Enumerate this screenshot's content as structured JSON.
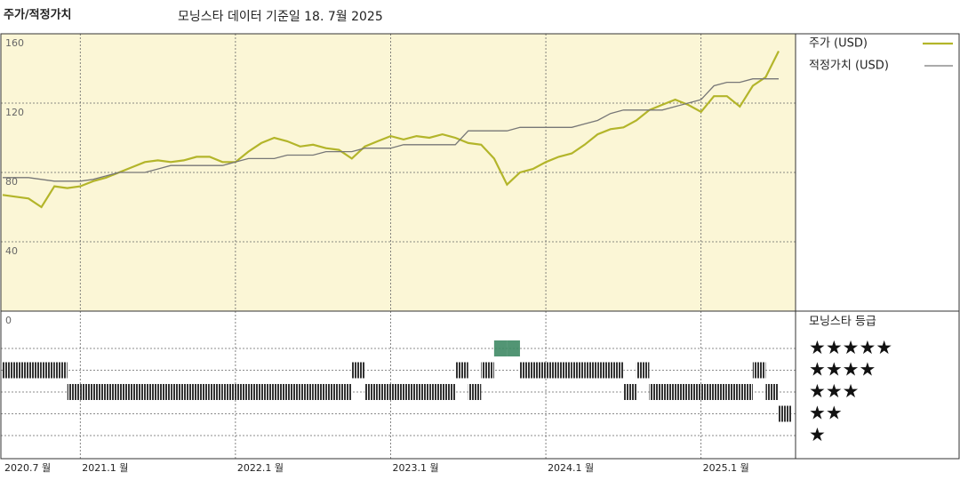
{
  "chart_data": {
    "type": "line",
    "title": "주가/적정가치",
    "subtitle": "모닝스타 데이터 기준일 18. 7월 2025",
    "x": [
      "2020-07",
      "2020-08",
      "2020-09",
      "2020-10",
      "2020-11",
      "2020-12",
      "2021-01",
      "2021-02",
      "2021-03",
      "2021-04",
      "2021-05",
      "2021-06",
      "2021-07",
      "2021-08",
      "2021-09",
      "2021-10",
      "2021-11",
      "2021-12",
      "2022-01",
      "2022-02",
      "2022-03",
      "2022-04",
      "2022-05",
      "2022-06",
      "2022-07",
      "2022-08",
      "2022-09",
      "2022-10",
      "2022-11",
      "2022-12",
      "2023-01",
      "2023-02",
      "2023-03",
      "2023-04",
      "2023-05",
      "2023-06",
      "2023-07",
      "2023-08",
      "2023-09",
      "2023-10",
      "2023-11",
      "2023-12",
      "2024-01",
      "2024-02",
      "2024-03",
      "2024-04",
      "2024-05",
      "2024-06",
      "2024-07",
      "2024-08",
      "2024-09",
      "2024-10",
      "2024-11",
      "2024-12",
      "2025-01",
      "2025-02",
      "2025-03",
      "2025-04",
      "2025-05",
      "2025-06",
      "2025-07"
    ],
    "series": [
      {
        "name": "주가 (USD)",
        "color": "#b3b52a",
        "width": 2.2,
        "values": [
          67,
          66,
          65,
          60,
          72,
          71,
          72,
          75,
          77,
          80,
          83,
          86,
          87,
          86,
          87,
          89,
          89,
          86,
          86,
          92,
          97,
          100,
          98,
          95,
          96,
          94,
          93,
          88,
          95,
          98,
          101,
          99,
          101,
          100,
          102,
          100,
          97,
          96,
          88,
          73,
          80,
          82,
          86,
          89,
          91,
          96,
          102,
          105,
          106,
          110,
          116,
          119,
          122,
          119,
          115,
          124,
          124,
          118,
          130,
          135,
          150
        ]
      },
      {
        "name": "적정가치 (USD)",
        "color": "#777777",
        "width": 1.3,
        "values": [
          77,
          77,
          77,
          76,
          75,
          75,
          75,
          76,
          78,
          80,
          80,
          80,
          82,
          84,
          84,
          84,
          84,
          84,
          86,
          88,
          88,
          88,
          90,
          90,
          90,
          92,
          92,
          92,
          94,
          94,
          94,
          96,
          96,
          96,
          96,
          96,
          104,
          104,
          104,
          104,
          106,
          106,
          106,
          106,
          106,
          108,
          110,
          114,
          116,
          116,
          116,
          116,
          118,
          120,
          122,
          130,
          132,
          132,
          134,
          134,
          134
        ]
      }
    ],
    "ratings": {
      "name": "모닝스타 등급",
      "values": [
        4,
        4,
        4,
        4,
        4,
        3,
        3,
        3,
        3,
        3,
        3,
        3,
        3,
        3,
        3,
        3,
        3,
        3,
        3,
        3,
        3,
        3,
        3,
        3,
        3,
        3,
        3,
        4,
        3,
        3,
        3,
        3,
        3,
        3,
        3,
        4,
        3,
        4,
        5,
        5,
        4,
        4,
        4,
        4,
        4,
        4,
        4,
        4,
        3,
        4,
        3,
        3,
        3,
        3,
        3,
        3,
        3,
        3,
        4,
        3,
        2
      ],
      "labels": [
        "★",
        "★★",
        "★★★",
        "★★★★",
        "★★★★★"
      ],
      "colors": [
        "#333333",
        "#333333",
        "#333333",
        "#333333",
        "#3f8a65"
      ]
    },
    "xlim": [
      "2020-07",
      "2025-08"
    ],
    "xticks": [
      {
        "value": "2020-07",
        "label": "2020.7 월"
      },
      {
        "value": "2021-01",
        "label": "2021.1 월"
      },
      {
        "value": "2022-01",
        "label": "2022.1 월"
      },
      {
        "value": "2023-01",
        "label": "2023.1 월"
      },
      {
        "value": "2024-01",
        "label": "2024.1 월"
      },
      {
        "value": "2025-01",
        "label": "2025.1 월"
      }
    ],
    "ylim": [
      0,
      160
    ],
    "yticks": [
      0,
      40,
      80,
      120,
      160
    ],
    "grid": true,
    "background": "#fbf6d6"
  }
}
